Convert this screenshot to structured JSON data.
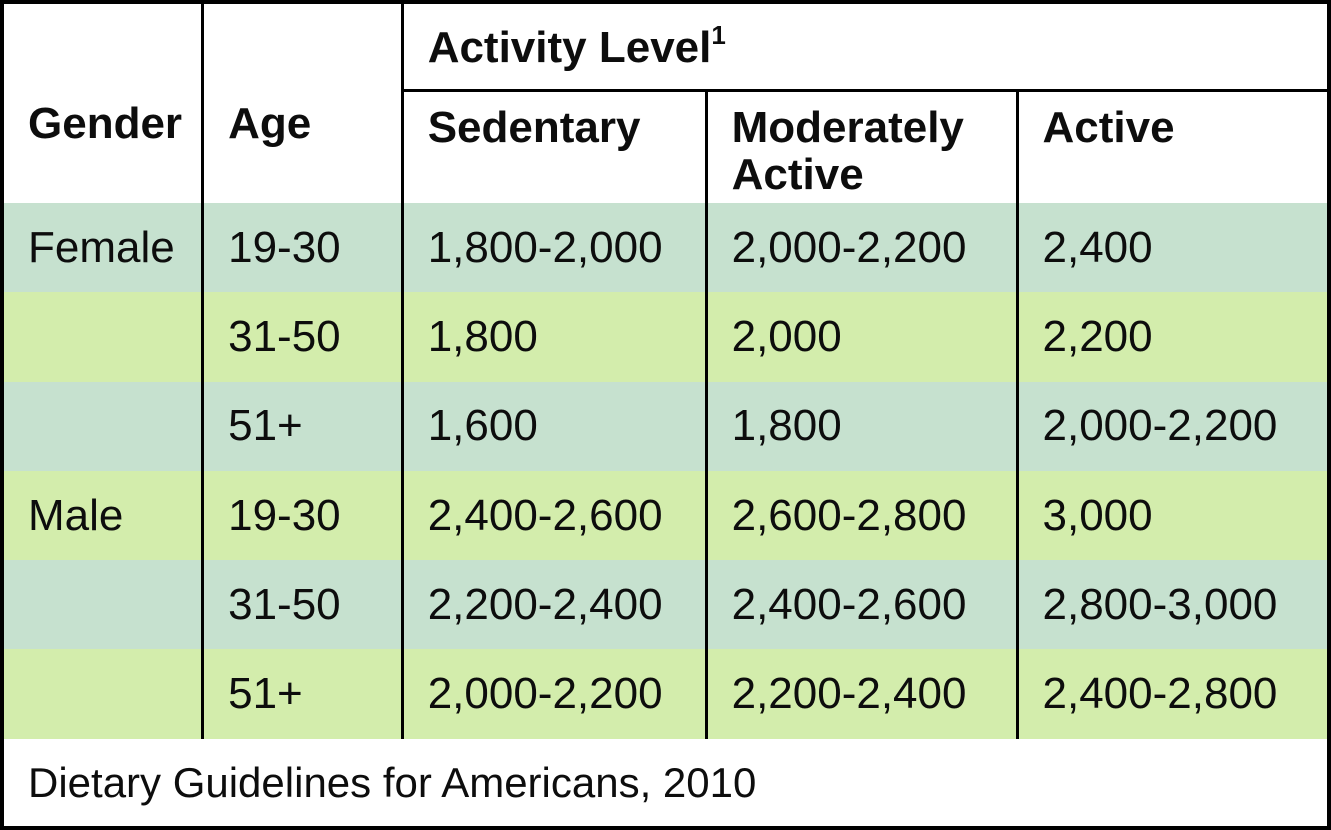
{
  "chart_data": {
    "type": "table",
    "header": {
      "gender_label": "Gender",
      "age_label": "Age",
      "activity_group_label": "Activity Level",
      "activity_group_footnote_marker": "1",
      "activity_columns": [
        "Sedentary",
        "Moderately Active",
        "Active"
      ]
    },
    "rows": [
      {
        "gender": "Female",
        "age": "19-30",
        "sedentary": "1,800-2,000",
        "moderately_active": "2,000-2,200",
        "active": "2,400"
      },
      {
        "gender": "",
        "age": "31-50",
        "sedentary": "1,800",
        "moderately_active": "2,000",
        "active": "2,200"
      },
      {
        "gender": "",
        "age": "51+",
        "sedentary": "1,600",
        "moderately_active": "1,800",
        "active": "2,000-2,200"
      },
      {
        "gender": "Male",
        "age": "19-30",
        "sedentary": "2,400-2,600",
        "moderately_active": "2,600-2,800",
        "active": "3,000"
      },
      {
        "gender": "",
        "age": "31-50",
        "sedentary": "2,200-2,400",
        "moderately_active": "2,400-2,600",
        "active": "2,800-3,000"
      },
      {
        "gender": "",
        "age": "51+",
        "sedentary": "2,000-2,200",
        "moderately_active": "2,200-2,400",
        "active": "2,400-2,800"
      }
    ],
    "footer": "Dietary Guidelines for Americans, 2010",
    "style": {
      "row_color_teal": "#c6e1cf",
      "row_color_green": "#d3edac",
      "border_color": "#000000",
      "header_background": "#ffffff",
      "text_color": "#0d0d0d"
    }
  }
}
